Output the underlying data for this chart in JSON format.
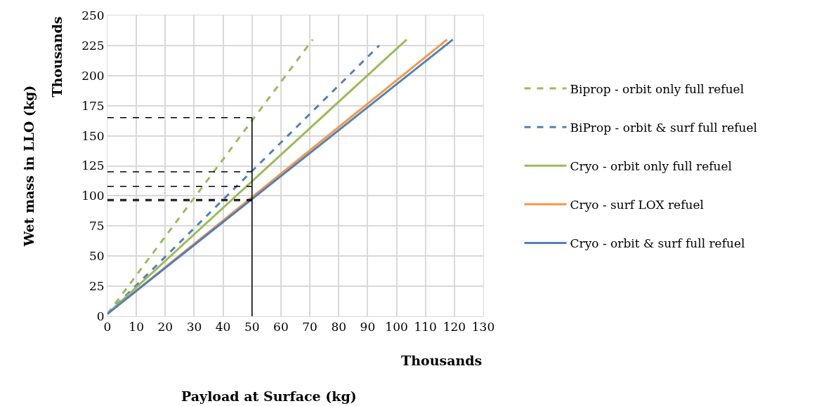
{
  "chart_data": {
    "type": "line",
    "xlabel": "Payload at Surface (kg)",
    "ylabel": "Wet mass in LLO (kg)",
    "annotations": [
      "Thousands",
      "Thousands"
    ],
    "xlim": [
      0,
      130
    ],
    "xticks": [
      0,
      10,
      20,
      30,
      40,
      50,
      60,
      70,
      80,
      90,
      100,
      110,
      120,
      130
    ],
    "ylim": [
      0,
      250
    ],
    "yticks": [
      0,
      25,
      50,
      75,
      100,
      125,
      150,
      175,
      200,
      225,
      250
    ],
    "grid": true,
    "legend": "right",
    "series": [
      {
        "name": "Biprop - orbit only full refuel",
        "color": "#9bbb59",
        "line_style": "dashed",
        "x": [
          0,
          71
        ],
        "values": [
          2,
          230
        ]
      },
      {
        "name": "BiProp - orbit & surf full refuel",
        "color": "#4f81bd",
        "line_style": "dashed",
        "x": [
          0,
          94
        ],
        "values": [
          2,
          225
        ]
      },
      {
        "name": "Cryo - orbit only full refuel",
        "color": "#9bbb59",
        "line_style": "solid",
        "x": [
          0,
          103.5
        ],
        "values": [
          2,
          230
        ]
      },
      {
        "name": "Cryo - surf LOX refuel",
        "color": "#f79646",
        "line_style": "solid",
        "x": [
          0,
          117.5
        ],
        "values": [
          2,
          230
        ]
      },
      {
        "name": "Cryo - orbit & surf full refuel",
        "color": "#4f81bd",
        "line_style": "solid",
        "x": [
          0,
          119.5
        ],
        "values": [
          2,
          230
        ]
      },
      {
        "color": "#000000",
        "line_style": "dashed",
        "x": [
          0,
          50
        ],
        "values": [
          165,
          165
        ]
      },
      {
        "color": "#000000",
        "line_style": "dashed",
        "x": [
          0,
          50
        ],
        "values": [
          120,
          120
        ]
      },
      {
        "color": "#000000",
        "line_style": "dashed",
        "x": [
          0,
          50
        ],
        "values": [
          108,
          108
        ]
      },
      {
        "color": "#000000",
        "line_style": "dashed",
        "x": [
          0,
          50
        ],
        "values": [
          97,
          97
        ]
      },
      {
        "color": "#000000",
        "line_style": "dashed",
        "x": [
          0,
          50
        ],
        "values": [
          96,
          96
        ]
      },
      {
        "color": "#000000",
        "line_style": "solid",
        "x": [
          50,
          50
        ],
        "values": [
          0,
          165
        ]
      }
    ]
  }
}
